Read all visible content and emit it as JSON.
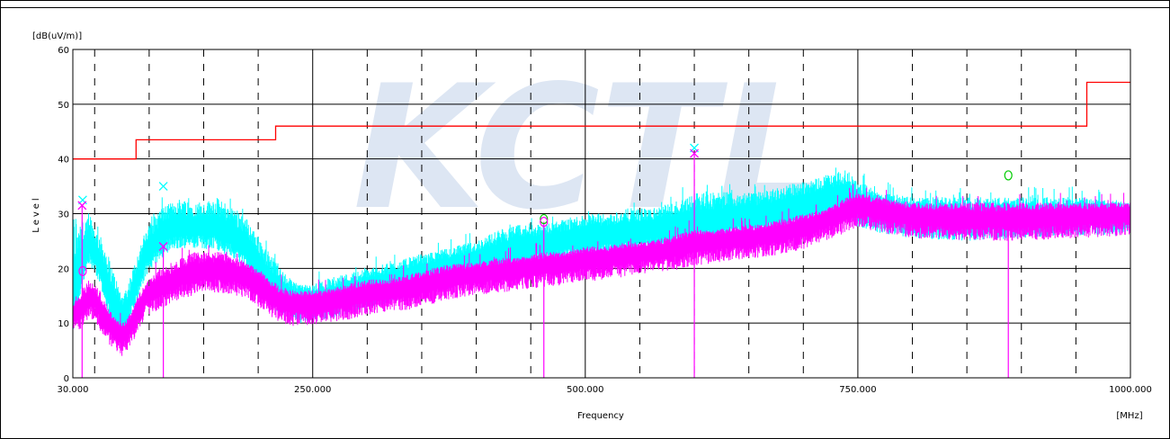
{
  "chart_data": {
    "type": "line",
    "y_unit_label": "[dB(uV/m)]",
    "ylabel": "Level",
    "xlabel": "Frequency",
    "x_unit_label": "[MHz]",
    "xlim": [
      30,
      1000
    ],
    "ylim": [
      0,
      60
    ],
    "y_ticks": [
      0,
      10,
      20,
      30,
      40,
      50,
      60
    ],
    "x_tick_labels": [
      {
        "x": 30,
        "label": "30.000"
      },
      {
        "x": 250,
        "label": "250.000"
      },
      {
        "x": 500,
        "label": "500.000"
      },
      {
        "x": 750,
        "label": "750.000"
      },
      {
        "x": 1000,
        "label": "1000.000"
      }
    ],
    "major_grid_x": [
      30,
      250,
      500,
      750,
      1000
    ],
    "dashed_grid_x": [
      50,
      100,
      150,
      200,
      300,
      350,
      400,
      450,
      550,
      600,
      650,
      700,
      800,
      850,
      900,
      950
    ],
    "grid": true,
    "watermark_text": "KCTL",
    "colors": {
      "limit": "#ff0000",
      "horizontal": "#ff00ff",
      "vertical": "#00ffff",
      "peak_marker": "#ff00ff",
      "qp_marker": "#00cc00",
      "watermark": "#dde6f3"
    },
    "limit_line": {
      "x": [
        30,
        88,
        88,
        216,
        216,
        960,
        960,
        1000
      ],
      "y": [
        40,
        40,
        43.5,
        43.5,
        46,
        46,
        54,
        54
      ]
    },
    "series": [
      {
        "key": "vertical",
        "color": "#00ffff",
        "envelope": [
          {
            "x": 30,
            "y": 13,
            "max": 30
          },
          {
            "x": 35,
            "y": 18,
            "max": 31
          },
          {
            "x": 40,
            "y": 22,
            "max": 27
          },
          {
            "x": 45,
            "y": 25,
            "max": 31
          },
          {
            "x": 50,
            "y": 24,
            "max": 27
          },
          {
            "x": 55,
            "y": 21,
            "max": 26
          },
          {
            "x": 60,
            "y": 18,
            "max": 24
          },
          {
            "x": 65,
            "y": 15,
            "max": 21
          },
          {
            "x": 70,
            "y": 13,
            "max": 18
          },
          {
            "x": 75,
            "y": 12,
            "max": 15
          },
          {
            "x": 80,
            "y": 13,
            "max": 17
          },
          {
            "x": 85,
            "y": 16,
            "max": 20
          },
          {
            "x": 90,
            "y": 19,
            "max": 23
          },
          {
            "x": 95,
            "y": 22,
            "max": 26
          },
          {
            "x": 100,
            "y": 24,
            "max": 28
          },
          {
            "x": 110,
            "y": 26,
            "max": 31
          },
          {
            "x": 120,
            "y": 28,
            "max": 32
          },
          {
            "x": 130,
            "y": 28,
            "max": 33
          },
          {
            "x": 140,
            "y": 28,
            "max": 32
          },
          {
            "x": 150,
            "y": 28,
            "max": 32
          },
          {
            "x": 160,
            "y": 28,
            "max": 33
          },
          {
            "x": 170,
            "y": 27,
            "max": 32
          },
          {
            "x": 180,
            "y": 26,
            "max": 31
          },
          {
            "x": 190,
            "y": 24,
            "max": 29
          },
          {
            "x": 200,
            "y": 21,
            "max": 26
          },
          {
            "x": 210,
            "y": 18,
            "max": 23
          },
          {
            "x": 220,
            "y": 16,
            "max": 20
          },
          {
            "x": 230,
            "y": 15,
            "max": 18
          },
          {
            "x": 240,
            "y": 14.5,
            "max": 17
          },
          {
            "x": 250,
            "y": 14.5,
            "max": 17
          },
          {
            "x": 260,
            "y": 15,
            "max": 18
          },
          {
            "x": 280,
            "y": 16,
            "max": 19
          },
          {
            "x": 300,
            "y": 17,
            "max": 20
          },
          {
            "x": 320,
            "y": 18,
            "max": 21
          },
          {
            "x": 340,
            "y": 19,
            "max": 22
          },
          {
            "x": 360,
            "y": 20,
            "max": 23
          },
          {
            "x": 380,
            "y": 21,
            "max": 24
          },
          {
            "x": 400,
            "y": 22,
            "max": 25
          },
          {
            "x": 420,
            "y": 23,
            "max": 27
          },
          {
            "x": 440,
            "y": 24,
            "max": 28
          },
          {
            "x": 460,
            "y": 25,
            "max": 28
          },
          {
            "x": 480,
            "y": 25.5,
            "max": 29
          },
          {
            "x": 500,
            "y": 26,
            "max": 30
          },
          {
            "x": 520,
            "y": 26.5,
            "max": 30
          },
          {
            "x": 540,
            "y": 27,
            "max": 31
          },
          {
            "x": 560,
            "y": 27.5,
            "max": 31
          },
          {
            "x": 580,
            "y": 28,
            "max": 32
          },
          {
            "x": 600,
            "y": 29,
            "max": 34
          },
          {
            "x": 620,
            "y": 29,
            "max": 34
          },
          {
            "x": 640,
            "y": 30,
            "max": 34
          },
          {
            "x": 660,
            "y": 30,
            "max": 34
          },
          {
            "x": 680,
            "y": 31,
            "max": 35
          },
          {
            "x": 700,
            "y": 32,
            "max": 36
          },
          {
            "x": 720,
            "y": 33,
            "max": 37
          },
          {
            "x": 740,
            "y": 34,
            "max": 38
          },
          {
            "x": 750,
            "y": 32,
            "max": 36
          },
          {
            "x": 770,
            "y": 31,
            "max": 34
          },
          {
            "x": 800,
            "y": 30,
            "max": 33
          },
          {
            "x": 850,
            "y": 29.5,
            "max": 33
          },
          {
            "x": 900,
            "y": 30,
            "max": 33
          },
          {
            "x": 950,
            "y": 30.5,
            "max": 33
          },
          {
            "x": 1000,
            "y": 30.5,
            "max": 32
          }
        ]
      },
      {
        "key": "horizontal",
        "color": "#ff00ff",
        "envelope": [
          {
            "x": 30,
            "y": 12,
            "max": 14
          },
          {
            "x": 35,
            "y": 13,
            "max": 15
          },
          {
            "x": 40,
            "y": 14,
            "max": 17
          },
          {
            "x": 45,
            "y": 15,
            "max": 18
          },
          {
            "x": 50,
            "y": 15,
            "max": 17
          },
          {
            "x": 55,
            "y": 13,
            "max": 16
          },
          {
            "x": 60,
            "y": 11.5,
            "max": 14
          },
          {
            "x": 65,
            "y": 10,
            "max": 12
          },
          {
            "x": 70,
            "y": 9,
            "max": 11
          },
          {
            "x": 75,
            "y": 8.5,
            "max": 10
          },
          {
            "x": 80,
            "y": 9,
            "max": 11
          },
          {
            "x": 85,
            "y": 11,
            "max": 13
          },
          {
            "x": 90,
            "y": 13,
            "max": 15
          },
          {
            "x": 95,
            "y": 15,
            "max": 17
          },
          {
            "x": 100,
            "y": 16,
            "max": 18
          },
          {
            "x": 110,
            "y": 17,
            "max": 20
          },
          {
            "x": 120,
            "y": 18,
            "max": 21
          },
          {
            "x": 130,
            "y": 19,
            "max": 22
          },
          {
            "x": 140,
            "y": 19.5,
            "max": 23
          },
          {
            "x": 150,
            "y": 20,
            "max": 23
          },
          {
            "x": 160,
            "y": 20,
            "max": 23
          },
          {
            "x": 170,
            "y": 20,
            "max": 23
          },
          {
            "x": 180,
            "y": 19.5,
            "max": 22
          },
          {
            "x": 190,
            "y": 19,
            "max": 21
          },
          {
            "x": 200,
            "y": 17.5,
            "max": 20
          },
          {
            "x": 210,
            "y": 16,
            "max": 18
          },
          {
            "x": 220,
            "y": 14.5,
            "max": 17
          },
          {
            "x": 230,
            "y": 14,
            "max": 16
          },
          {
            "x": 240,
            "y": 14,
            "max": 16
          },
          {
            "x": 250,
            "y": 14,
            "max": 16
          },
          {
            "x": 260,
            "y": 14.5,
            "max": 16
          },
          {
            "x": 280,
            "y": 15,
            "max": 17
          },
          {
            "x": 300,
            "y": 16,
            "max": 18
          },
          {
            "x": 320,
            "y": 16.5,
            "max": 18
          },
          {
            "x": 340,
            "y": 17,
            "max": 19
          },
          {
            "x": 360,
            "y": 18,
            "max": 20
          },
          {
            "x": 380,
            "y": 19,
            "max": 21
          },
          {
            "x": 400,
            "y": 19.5,
            "max": 21
          },
          {
            "x": 420,
            "y": 20,
            "max": 22
          },
          {
            "x": 440,
            "y": 20.5,
            "max": 22
          },
          {
            "x": 460,
            "y": 21,
            "max": 23
          },
          {
            "x": 480,
            "y": 21.5,
            "max": 23
          },
          {
            "x": 500,
            "y": 22,
            "max": 24
          },
          {
            "x": 520,
            "y": 22.5,
            "max": 24
          },
          {
            "x": 540,
            "y": 23,
            "max": 25
          },
          {
            "x": 560,
            "y": 23.5,
            "max": 25
          },
          {
            "x": 580,
            "y": 24,
            "max": 26
          },
          {
            "x": 600,
            "y": 25,
            "max": 27
          },
          {
            "x": 620,
            "y": 25.5,
            "max": 27
          },
          {
            "x": 640,
            "y": 26,
            "max": 28
          },
          {
            "x": 660,
            "y": 26.5,
            "max": 28
          },
          {
            "x": 680,
            "y": 27,
            "max": 29
          },
          {
            "x": 700,
            "y": 28,
            "max": 30
          },
          {
            "x": 720,
            "y": 29.5,
            "max": 31
          },
          {
            "x": 740,
            "y": 31,
            "max": 33
          },
          {
            "x": 750,
            "y": 32,
            "max": 34
          },
          {
            "x": 770,
            "y": 31,
            "max": 33
          },
          {
            "x": 800,
            "y": 30,
            "max": 32
          },
          {
            "x": 850,
            "y": 29.5,
            "max": 32
          },
          {
            "x": 900,
            "y": 29.5,
            "max": 32
          },
          {
            "x": 950,
            "y": 30,
            "max": 32
          },
          {
            "x": 1000,
            "y": 30.5,
            "max": 32
          }
        ]
      }
    ],
    "peak_markers": [
      {
        "x": 39,
        "y": 32.5,
        "color": "#00ffff"
      },
      {
        "x": 38.5,
        "y": 31.5,
        "color": "#ff00ff"
      },
      {
        "x": 113,
        "y": 35,
        "color": "#00ffff"
      },
      {
        "x": 113,
        "y": 24,
        "color": "#ff00ff"
      },
      {
        "x": 600,
        "y": 42,
        "color": "#00ffff"
      },
      {
        "x": 600,
        "y": 41,
        "color": "#ff00ff"
      }
    ],
    "qp_markers": [
      {
        "x": 39,
        "y": 19.5,
        "color": "#ff00ff"
      },
      {
        "x": 462,
        "y": 29,
        "color": "#00cc00"
      },
      {
        "x": 462,
        "y": 28.5,
        "color": "#ff00ff"
      },
      {
        "x": 888,
        "y": 37,
        "color": "#00cc00"
      },
      {
        "x": 888,
        "y": 28,
        "color": "#ff00ff"
      }
    ],
    "marker_stems": [
      {
        "x": 38.5,
        "top": 31.5
      },
      {
        "x": 113,
        "top": 24
      },
      {
        "x": 462,
        "top": 28.5
      },
      {
        "x": 600,
        "top": 41
      },
      {
        "x": 888,
        "top": 28
      }
    ]
  }
}
